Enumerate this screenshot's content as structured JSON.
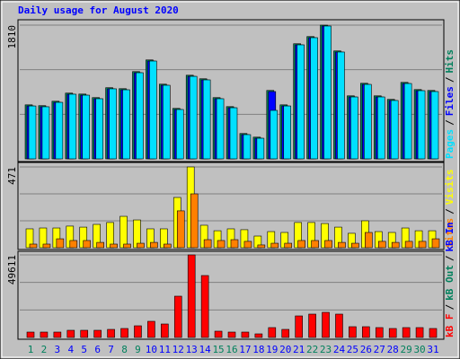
{
  "separator": "/",
  "chart_data": [
    {
      "type": "bar",
      "title": "Daily usage for August 2020",
      "categories": [
        "1",
        "2",
        "3",
        "4",
        "5",
        "6",
        "7",
        "8",
        "9",
        "10",
        "11",
        "12",
        "13",
        "14",
        "15",
        "16",
        "17",
        "18",
        "19",
        "20",
        "21",
        "22",
        "23",
        "24",
        "25",
        "26",
        "27",
        "28",
        "29",
        "30",
        "31"
      ],
      "weekend": [
        true,
        true,
        false,
        false,
        false,
        false,
        false,
        true,
        true,
        false,
        false,
        false,
        false,
        false,
        true,
        true,
        false,
        false,
        false,
        false,
        false,
        true,
        true,
        false,
        false,
        false,
        false,
        false,
        true,
        true,
        false
      ],
      "weekend_color": "#00805c",
      "weekday_color": "#0000ff",
      "ylim": [
        0,
        1810
      ],
      "yticks": [
        1810
      ],
      "series": [
        {
          "name": "Hits",
          "color": "#00805c",
          "values": [
            731,
            720,
            780,
            890,
            877,
            829,
            963,
            950,
            1181,
            1339,
            1011,
            683,
            1132,
            1084,
            829,
            707,
            343,
            294,
            926,
            731,
            1558,
            1655,
            1810,
            1461,
            853,
            1023,
            853,
            805,
            1035,
            938,
            926
          ]
        },
        {
          "name": "Files",
          "color": "#0000ff",
          "values": [
            716,
            705,
            765,
            875,
            862,
            814,
            948,
            935,
            1166,
            1324,
            996,
            668,
            1117,
            1069,
            814,
            692,
            328,
            279,
            911,
            716,
            1543,
            1640,
            1798,
            1446,
            838,
            1008,
            838,
            790,
            1020,
            923,
            911
          ]
        },
        {
          "name": "Pages",
          "color": "#00e0ff",
          "values": [
            716,
            705,
            765,
            875,
            862,
            814,
            948,
            935,
            1166,
            1324,
            996,
            668,
            1117,
            1069,
            814,
            692,
            328,
            279,
            656,
            716,
            1543,
            1640,
            1798,
            1446,
            838,
            1008,
            838,
            790,
            1020,
            923,
            911
          ]
        }
      ]
    },
    {
      "type": "bar",
      "ylim": [
        0,
        471
      ],
      "yticks": [
        471
      ],
      "series": [
        {
          "name": "Visits",
          "color": "#ffff00",
          "values": [
            110,
            115,
            115,
            126,
            120,
            136,
            147,
            183,
            162,
            110,
            110,
            293,
            471,
            131,
            99,
            110,
            105,
            68,
            94,
            89,
            147,
            147,
            141,
            120,
            84,
            157,
            94,
            89,
            115,
            99,
            99
          ]
        },
        {
          "name": "Sites",
          "color": "#ff8000",
          "values": [
            21,
            21,
            52,
            42,
            42,
            31,
            21,
            21,
            26,
            31,
            21,
            215,
            314,
            47,
            42,
            47,
            37,
            16,
            26,
            26,
            42,
            42,
            42,
            31,
            26,
            89,
            37,
            31,
            37,
            37,
            52
          ]
        }
      ]
    },
    {
      "type": "bar",
      "ylim": [
        0,
        49611
      ],
      "yticks": [
        49611
      ],
      "series": [
        {
          "name": "kB F",
          "color": "#ff0000",
          "values": [
            3235,
            3235,
            3235,
            4314,
            4314,
            4314,
            4853,
            5393,
            7010,
            9707,
            8089,
            24805,
            49611,
            37208,
            3774,
            3235,
            3235,
            2157,
            5932,
            4853,
            12943,
            14022,
            15100,
            14022,
            6471,
            6471,
            5932,
            5393,
            5932,
            5932,
            5393
          ]
        }
      ],
      "legend_only": [
        {
          "name": "kB Out",
          "color": "#00805c"
        },
        {
          "name": "kB In",
          "color": "#0000ff"
        }
      ]
    }
  ]
}
